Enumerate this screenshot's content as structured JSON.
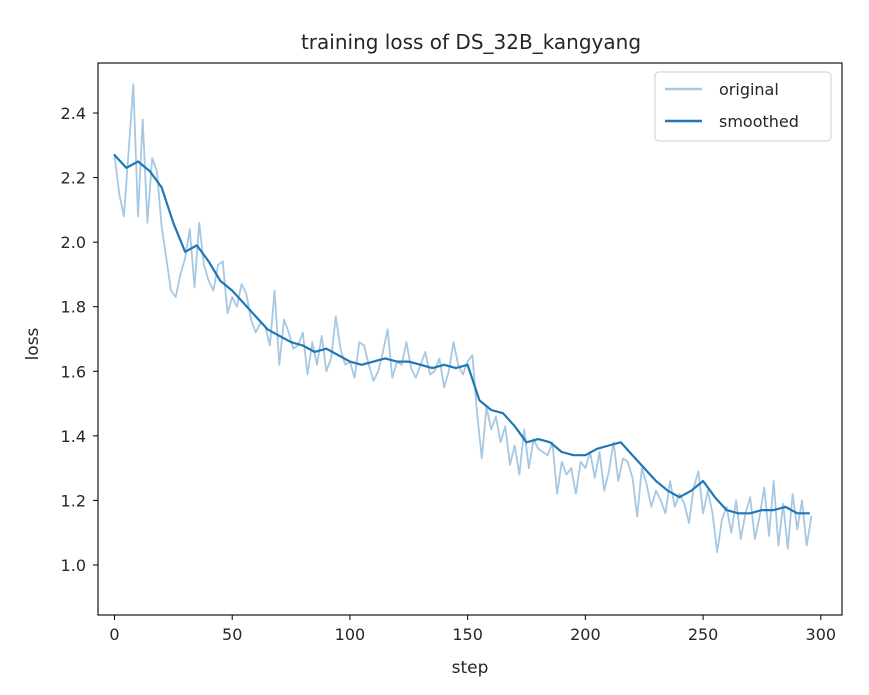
{
  "chart_data": {
    "type": "line",
    "title": "training loss of DS_32B_kangyang",
    "xlabel": "step",
    "ylabel": "loss",
    "xlim": [
      -7,
      309
    ],
    "ylim": [
      0.845,
      2.555
    ],
    "xticks": [
      0,
      50,
      100,
      150,
      200,
      250,
      300
    ],
    "yticks": [
      1.0,
      1.2,
      1.4,
      1.6,
      1.8,
      2.0,
      2.2,
      2.4
    ],
    "xtick_labels": [
      "0",
      "50",
      "100",
      "150",
      "200",
      "250",
      "300"
    ],
    "ytick_labels": [
      "1.0",
      "1.2",
      "1.4",
      "1.6",
      "1.8",
      "2.0",
      "2.2",
      "2.4"
    ],
    "grid": false,
    "legend": {
      "position": "top-right",
      "entries": [
        "original",
        "smoothed"
      ]
    },
    "colors": {
      "original": "#a6c8e3",
      "smoothed": "#1f77b4"
    },
    "series": [
      {
        "name": "original",
        "style": "thin-light",
        "x": [
          0,
          2,
          4,
          6,
          8,
          10,
          12,
          14,
          16,
          18,
          20,
          22,
          24,
          26,
          28,
          30,
          32,
          34,
          36,
          38,
          40,
          42,
          44,
          46,
          48,
          50,
          52,
          54,
          56,
          58,
          60,
          62,
          64,
          66,
          68,
          70,
          72,
          74,
          76,
          78,
          80,
          82,
          84,
          86,
          88,
          90,
          92,
          94,
          96,
          98,
          100,
          102,
          104,
          106,
          108,
          110,
          112,
          114,
          116,
          118,
          120,
          122,
          124,
          126,
          128,
          130,
          132,
          134,
          136,
          138,
          140,
          142,
          144,
          146,
          148,
          150,
          152,
          154,
          156,
          158,
          160,
          162,
          164,
          166,
          168,
          170,
          172,
          174,
          176,
          178,
          180,
          182,
          184,
          186,
          188,
          190,
          192,
          194,
          196,
          198,
          200,
          202,
          204,
          206,
          208,
          210,
          212,
          214,
          216,
          218,
          220,
          222,
          224,
          226,
          228,
          230,
          232,
          234,
          236,
          238,
          240,
          242,
          244,
          246,
          248,
          250,
          252,
          254,
          256,
          258,
          260,
          262,
          264,
          266,
          268,
          270,
          272,
          274,
          276,
          278,
          280,
          282,
          284,
          286,
          288,
          290,
          292,
          294,
          296
        ],
        "y": [
          2.27,
          2.15,
          2.08,
          2.28,
          2.49,
          2.08,
          2.38,
          2.06,
          2.26,
          2.22,
          2.05,
          1.95,
          1.85,
          1.83,
          1.9,
          1.95,
          2.04,
          1.86,
          2.06,
          1.93,
          1.88,
          1.85,
          1.93,
          1.94,
          1.78,
          1.83,
          1.8,
          1.87,
          1.84,
          1.76,
          1.72,
          1.75,
          1.74,
          1.68,
          1.85,
          1.62,
          1.76,
          1.72,
          1.67,
          1.68,
          1.72,
          1.59,
          1.69,
          1.62,
          1.71,
          1.6,
          1.64,
          1.77,
          1.67,
          1.62,
          1.63,
          1.58,
          1.69,
          1.68,
          1.62,
          1.57,
          1.6,
          1.66,
          1.73,
          1.58,
          1.63,
          1.62,
          1.69,
          1.61,
          1.58,
          1.62,
          1.66,
          1.59,
          1.6,
          1.64,
          1.55,
          1.6,
          1.69,
          1.62,
          1.59,
          1.63,
          1.65,
          1.47,
          1.33,
          1.49,
          1.42,
          1.46,
          1.38,
          1.43,
          1.31,
          1.37,
          1.28,
          1.42,
          1.3,
          1.39,
          1.36,
          1.35,
          1.34,
          1.38,
          1.22,
          1.32,
          1.28,
          1.3,
          1.22,
          1.32,
          1.3,
          1.35,
          1.27,
          1.35,
          1.23,
          1.29,
          1.38,
          1.26,
          1.33,
          1.32,
          1.27,
          1.15,
          1.3,
          1.25,
          1.18,
          1.23,
          1.2,
          1.16,
          1.26,
          1.18,
          1.22,
          1.19,
          1.13,
          1.24,
          1.29,
          1.16,
          1.23,
          1.16,
          1.04,
          1.14,
          1.18,
          1.1,
          1.2,
          1.08,
          1.16,
          1.21,
          1.08,
          1.15,
          1.24,
          1.09,
          1.26,
          1.06,
          1.19,
          1.05,
          1.22,
          1.11,
          1.2,
          1.06,
          1.15
        ],
        "values": [
          2.27,
          2.15,
          2.08,
          2.28,
          2.49,
          2.08,
          2.38,
          2.06,
          2.26,
          2.22,
          2.05,
          1.95,
          1.85,
          1.83,
          1.9,
          1.95,
          2.04,
          1.86,
          2.06,
          1.93,
          1.88,
          1.85,
          1.93,
          1.94,
          1.78,
          1.83,
          1.8,
          1.87,
          1.84,
          1.76,
          1.72,
          1.75,
          1.74,
          1.68,
          1.85,
          1.62,
          1.76,
          1.72,
          1.67,
          1.68,
          1.72,
          1.59,
          1.69,
          1.62,
          1.71,
          1.6,
          1.64,
          1.77,
          1.67,
          1.62,
          1.63,
          1.58,
          1.69,
          1.68,
          1.62,
          1.57,
          1.6,
          1.66,
          1.73,
          1.58,
          1.63,
          1.62,
          1.69,
          1.61,
          1.58,
          1.62,
          1.66,
          1.59,
          1.6,
          1.64,
          1.55,
          1.6,
          1.69,
          1.62,
          1.59,
          1.63,
          1.65,
          1.47,
          1.33,
          1.49,
          1.42,
          1.46,
          1.38,
          1.43,
          1.31,
          1.37,
          1.28,
          1.42,
          1.3,
          1.39,
          1.36,
          1.35,
          1.34,
          1.38,
          1.22,
          1.32,
          1.28,
          1.3,
          1.22,
          1.32,
          1.3,
          1.35,
          1.27,
          1.35,
          1.23,
          1.29,
          1.38,
          1.26,
          1.33,
          1.32,
          1.27,
          1.15,
          1.3,
          1.25,
          1.18,
          1.23,
          1.2,
          1.16,
          1.26,
          1.18,
          1.22,
          1.19,
          1.13,
          1.24,
          1.29,
          1.16,
          1.23,
          1.16,
          1.04,
          1.14,
          1.18,
          1.1,
          1.2,
          1.08,
          1.16,
          1.21,
          1.08,
          1.15,
          1.24,
          1.09,
          1.26,
          1.06,
          1.19,
          1.05,
          1.22,
          1.11,
          1.2,
          1.06,
          1.15
        ]
      },
      {
        "name": "smoothed",
        "style": "solid",
        "x": [
          0,
          5,
          10,
          15,
          20,
          25,
          30,
          35,
          40,
          45,
          50,
          55,
          60,
          65,
          70,
          75,
          80,
          85,
          90,
          95,
          100,
          105,
          110,
          115,
          120,
          125,
          130,
          135,
          140,
          145,
          150,
          155,
          160,
          165,
          170,
          175,
          180,
          185,
          190,
          195,
          200,
          205,
          210,
          215,
          220,
          225,
          230,
          235,
          240,
          245,
          250,
          255,
          260,
          265,
          270,
          275,
          280,
          285,
          290,
          295
        ],
        "y": [
          2.27,
          2.23,
          2.25,
          2.22,
          2.17,
          2.06,
          1.97,
          1.99,
          1.94,
          1.88,
          1.85,
          1.81,
          1.77,
          1.73,
          1.71,
          1.69,
          1.68,
          1.66,
          1.67,
          1.65,
          1.63,
          1.62,
          1.63,
          1.64,
          1.63,
          1.63,
          1.62,
          1.61,
          1.62,
          1.61,
          1.62,
          1.51,
          1.48,
          1.47,
          1.43,
          1.38,
          1.39,
          1.38,
          1.35,
          1.34,
          1.34,
          1.36,
          1.37,
          1.38,
          1.34,
          1.3,
          1.26,
          1.23,
          1.21,
          1.23,
          1.26,
          1.21,
          1.17,
          1.16,
          1.16,
          1.17,
          1.17,
          1.18,
          1.16,
          1.16
        ],
        "values": [
          2.27,
          2.23,
          2.25,
          2.22,
          2.17,
          2.06,
          1.97,
          1.99,
          1.94,
          1.88,
          1.85,
          1.81,
          1.77,
          1.73,
          1.71,
          1.69,
          1.68,
          1.66,
          1.67,
          1.65,
          1.63,
          1.62,
          1.63,
          1.64,
          1.63,
          1.63,
          1.62,
          1.61,
          1.62,
          1.61,
          1.62,
          1.51,
          1.48,
          1.47,
          1.43,
          1.38,
          1.39,
          1.38,
          1.35,
          1.34,
          1.34,
          1.36,
          1.37,
          1.38,
          1.34,
          1.3,
          1.26,
          1.23,
          1.21,
          1.23,
          1.26,
          1.21,
          1.17,
          1.16,
          1.16,
          1.17,
          1.17,
          1.18,
          1.16,
          1.16
        ]
      }
    ]
  }
}
